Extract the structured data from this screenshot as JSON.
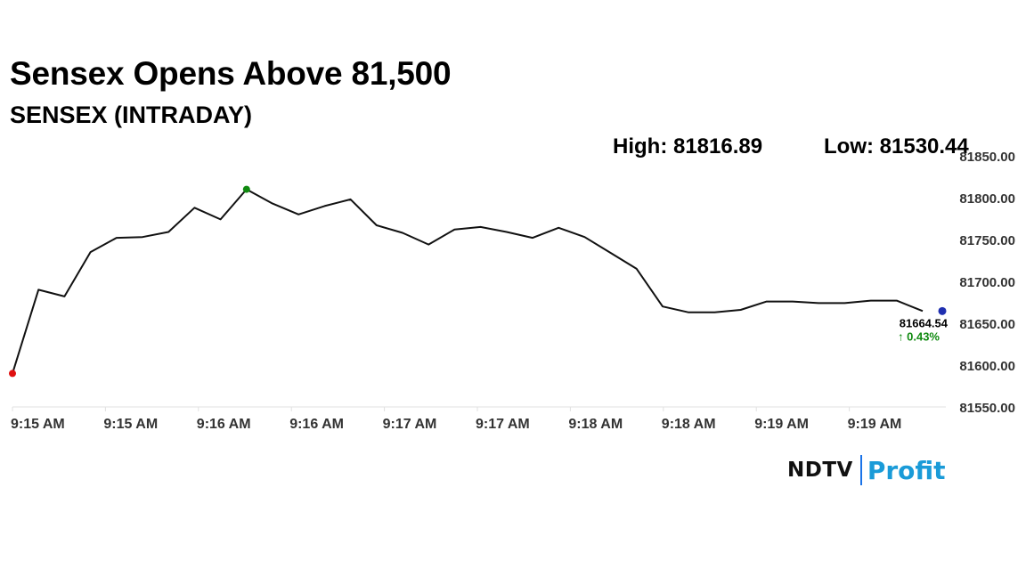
{
  "headline": "Sensex Opens Above 81,500",
  "stats": {
    "high": "High: 81816.89",
    "low": "Low: 81530.44"
  },
  "brand": {
    "ndtv": "NDTV",
    "profit": "Profit"
  },
  "colors": {
    "line": "#111111",
    "open_marker": "#e01010",
    "high_marker": "#108a10",
    "last_marker": "#1f2fb0",
    "change": "#108a10",
    "gridline": "#e0e0e0"
  },
  "chart_data": {
    "type": "line",
    "title": "SENSEX (INTRADAY)",
    "ylim": [
      81550,
      81850
    ],
    "yticks": [
      "81850.00",
      "81800.00",
      "81750.00",
      "81700.00",
      "81650.00",
      "81600.00",
      "81550.00"
    ],
    "xticks": [
      "9:15 AM",
      "9:15 AM",
      "9:16 AM",
      "9:16 AM",
      "9:17 AM",
      "9:17 AM",
      "9:18 AM",
      "9:18 AM",
      "9:19 AM",
      "9:19 AM"
    ],
    "series": [
      {
        "values": [
          81590,
          81690,
          81682,
          81735,
          81752,
          81753,
          81759,
          81788,
          81774,
          81810,
          81793,
          81780,
          81790,
          81798,
          81767,
          81758,
          81744,
          81762,
          81765,
          81759,
          81752,
          81764,
          81753,
          81734,
          81715,
          81670,
          81663,
          81663,
          81666,
          81676,
          81676,
          81674,
          81674,
          81677,
          81677,
          81664.54
        ]
      }
    ],
    "last_value": "81664.54",
    "last_change": "↑ 0.43%"
  }
}
